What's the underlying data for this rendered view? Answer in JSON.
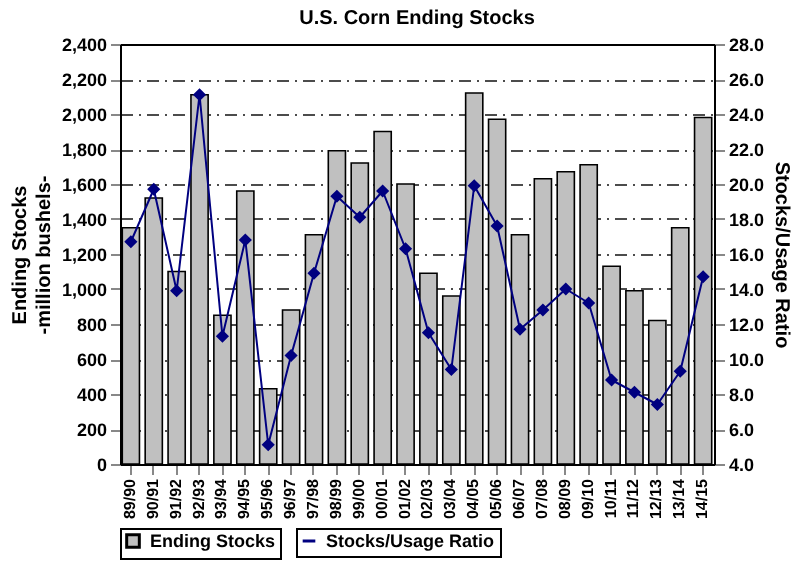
{
  "chart_data": {
    "type": "bar",
    "title": "U.S. Corn Ending Stocks",
    "ylabel": "Ending Stocks\n-million bushels-",
    "y2label": "Stocks/Usage Ratio",
    "categories": [
      "89/90",
      "90/91",
      "91/92",
      "92/93",
      "93/94",
      "94/95",
      "95/96",
      "96/97",
      "97/98",
      "98/99",
      "99/00",
      "00/01",
      "01/02",
      "02/03",
      "03/04",
      "04/05",
      "05/06",
      "06/07",
      "07/08",
      "08/09",
      "09/10",
      "10/11",
      "11/12",
      "12/13",
      "13/14",
      "14/15"
    ],
    "series": [
      {
        "name": "Ending Stocks",
        "color": "#c0c0c0",
        "values": [
          1350,
          1520,
          1100,
          2110,
          850,
          1560,
          430,
          880,
          1310,
          1790,
          1720,
          1900,
          1600,
          1090,
          960,
          2120,
          1970,
          1310,
          1630,
          1670,
          1710,
          1130,
          990,
          820,
          1350,
          1980
        ]
      },
      {
        "name": "Stocks/Usage Ratio",
        "type": "line",
        "axis": "y2",
        "color": "#000080",
        "marker": "diamond",
        "values": [
          16.7,
          19.7,
          13.9,
          25.1,
          11.3,
          16.8,
          5.1,
          10.2,
          14.9,
          19.3,
          18.1,
          19.6,
          16.3,
          11.5,
          9.4,
          19.9,
          17.6,
          11.7,
          12.8,
          14.0,
          13.2,
          8.8,
          8.1,
          7.4,
          9.3,
          14.7
        ]
      }
    ],
    "ylim": [
      0,
      2400
    ],
    "yticks": [
      {
        "value": 0,
        "label": "0"
      },
      {
        "value": 200,
        "label": "200"
      },
      {
        "value": 400,
        "label": "400"
      },
      {
        "value": 600,
        "label": "600"
      },
      {
        "value": 800,
        "label": "800"
      },
      {
        "value": 1000,
        "label": "1,000"
      },
      {
        "value": 1200,
        "label": "1,200"
      },
      {
        "value": 1400,
        "label": "1,400"
      },
      {
        "value": 1600,
        "label": "1,600"
      },
      {
        "value": 1800,
        "label": "1,800"
      },
      {
        "value": 2000,
        "label": "2,000"
      },
      {
        "value": 2200,
        "label": "2,200"
      },
      {
        "value": 2400,
        "label": "2,400"
      }
    ],
    "y2lim": [
      4,
      28
    ],
    "y2ticks": [
      {
        "value": 4,
        "label": "4.0"
      },
      {
        "value": 6,
        "label": "6.0"
      },
      {
        "value": 8,
        "label": "8.0"
      },
      {
        "value": 10,
        "label": "10.0"
      },
      {
        "value": 12,
        "label": "12.0"
      },
      {
        "value": 14,
        "label": "14.0"
      },
      {
        "value": 16,
        "label": "16.0"
      },
      {
        "value": 18,
        "label": "18.0"
      },
      {
        "value": 20,
        "label": "20.0"
      },
      {
        "value": 22,
        "label": "22.0"
      },
      {
        "value": 24,
        "label": "24.0"
      },
      {
        "value": 26,
        "label": "26.0"
      },
      {
        "value": 28,
        "label": "28.0"
      }
    ],
    "grid": "y",
    "line_style": "solid",
    "legend": "bottom"
  }
}
